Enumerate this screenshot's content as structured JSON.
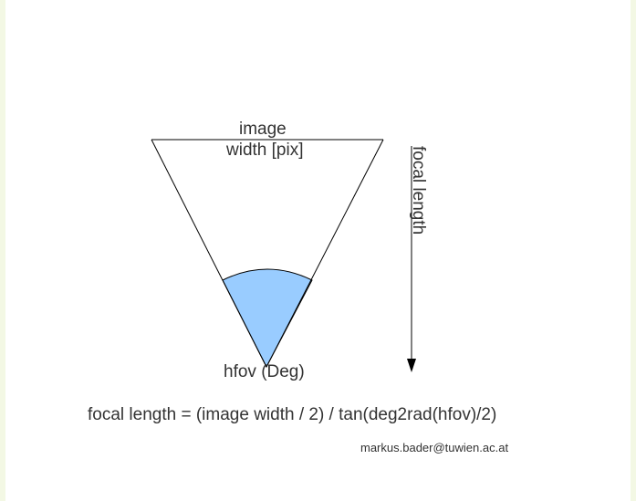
{
  "diagram": {
    "top_label_line1": "image",
    "top_label_line2": "width [pix]",
    "angle_label": "hfov (Deg)",
    "side_label": "focal length",
    "formula": "focal length = (image width / 2) / tan(deg2rad(hfov)/2)",
    "author": "markus.bader@tuwien.ac.at"
  },
  "colors": {
    "sector_fill": "#99ccff",
    "line": "#000000",
    "text": "#333333",
    "page_edge": "#f3f8e4"
  }
}
